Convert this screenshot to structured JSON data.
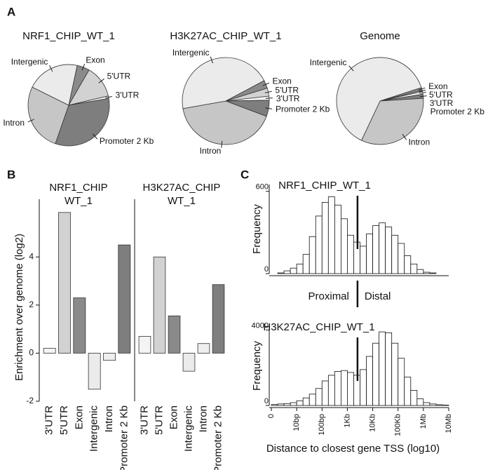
{
  "panel_labels": [
    "A",
    "B",
    "C"
  ],
  "chart_data": [
    {
      "type": "pie",
      "title": "NRF1_CHIP_WT_1",
      "categories": [
        "Exon",
        "5'UTR",
        "3'UTR",
        "Promoter 2 Kb",
        "Intron",
        "Intergenic"
      ],
      "values": [
        5,
        13,
        1,
        33,
        27,
        21
      ],
      "colors": [
        "#8a8a8a",
        "#d2d2d2",
        "#f4f4f4",
        "#7e7e7e",
        "#c6c6c6",
        "#ebebeb"
      ]
    },
    {
      "type": "pie",
      "title": "H3K27AC_CHIP_WT_1",
      "categories": [
        "Exon",
        "5'UTR",
        "3'UTR",
        "Promoter 2 Kb",
        "Intron",
        "Intergenic"
      ],
      "values": [
        3,
        3,
        1.5,
        6,
        41.5,
        45
      ],
      "colors": [
        "#8a8a8a",
        "#d2d2d2",
        "#f4f4f4",
        "#7e7e7e",
        "#c6c6c6",
        "#ebebeb"
      ]
    },
    {
      "type": "pie",
      "title": "Genome",
      "categories": [
        "Exon",
        "5'UTR",
        "3'UTR",
        "Promoter 2 Kb",
        "Intron",
        "Intergenic"
      ],
      "values": [
        1,
        0.5,
        1,
        1.5,
        33,
        63
      ],
      "colors": [
        "#8a8a8a",
        "#d2d2d2",
        "#f4f4f4",
        "#7e7e7e",
        "#c6c6c6",
        "#ebebeb"
      ]
    },
    {
      "type": "bar",
      "title": [
        "NRF1_CHIP",
        "WT_1"
      ],
      "ylabel": "Enrichment over genome (log2)",
      "categories": [
        "3'UTR",
        "5'UTR",
        "Exon",
        "Intergenic",
        "Intron",
        "Promoter 2 Kb"
      ],
      "values": [
        0.2,
        5.85,
        2.3,
        -1.5,
        -0.3,
        4.5
      ],
      "colors": [
        "#f4f4f4",
        "#d2d2d2",
        "#8a8a8a",
        "#ebebeb",
        "#eeeeee",
        "#7e7e7e"
      ],
      "ylim": [
        -2,
        6.4
      ],
      "yticks": [
        -2,
        0,
        2,
        4
      ]
    },
    {
      "type": "bar",
      "title": [
        "H3K27AC_CHIP",
        "WT_1"
      ],
      "categories": [
        "3'UTR",
        "5'UTR",
        "Exon",
        "Intergenic",
        "Intron",
        "Promoter 2 Kb"
      ],
      "values": [
        0.7,
        4.0,
        1.55,
        -0.75,
        0.4,
        2.85
      ],
      "colors": [
        "#f4f4f4",
        "#d2d2d2",
        "#8a8a8a",
        "#ebebeb",
        "#eeeeee",
        "#7e7e7e"
      ],
      "ylim": [
        -2,
        6.4
      ]
    },
    {
      "type": "histogram",
      "title": "NRF1_CHIP_WT_1",
      "ylabel": "Frequency",
      "bins": [
        0,
        0.25,
        0.5,
        0.75,
        1,
        1.25,
        1.5,
        1.75,
        2,
        2.25,
        2.5,
        2.75,
        3,
        3.25,
        3.5,
        3.75,
        4,
        4.25,
        4.5,
        4.75,
        5,
        5.25,
        5.5,
        5.75,
        6,
        6.25,
        6.5,
        6.75,
        7
      ],
      "values": [
        0,
        5,
        20,
        40,
        70,
        140,
        270,
        420,
        520,
        560,
        500,
        400,
        280,
        230,
        200,
        290,
        350,
        370,
        340,
        280,
        220,
        130,
        70,
        30,
        10,
        5,
        0,
        0
      ],
      "xlim": [
        0,
        7
      ],
      "ylim": [
        0,
        650
      ],
      "yticks": [
        0,
        600
      ],
      "divider": 3.4,
      "annotations": [
        "Proximal",
        "Distal"
      ]
    },
    {
      "type": "histogram",
      "title": "H3K27AC_CHIP_WT_1",
      "ylabel": "Frequency",
      "xlabel": "Distance to closest gene TSS (log10)",
      "bins": [
        0,
        0.25,
        0.5,
        0.75,
        1,
        1.25,
        1.5,
        1.75,
        2,
        2.25,
        2.5,
        2.75,
        3,
        3.25,
        3.5,
        3.75,
        4,
        4.25,
        4.5,
        4.75,
        5,
        5.25,
        5.5,
        5.75,
        6,
        6.25,
        6.5,
        6.75,
        7
      ],
      "values": [
        50,
        80,
        100,
        150,
        250,
        400,
        600,
        900,
        1300,
        1600,
        1800,
        1850,
        1750,
        1600,
        1900,
        2600,
        3300,
        3900,
        3850,
        3300,
        2500,
        1500,
        800,
        350,
        150,
        80,
        40,
        20
      ],
      "xlim": [
        0,
        7
      ],
      "ylim": [
        0,
        4200
      ],
      "yticks": [
        0,
        4000
      ],
      "xticks": [
        0,
        {
          "value": 1,
          "label": "10bp"
        },
        {
          "value": 2,
          "label": "100bp"
        },
        {
          "value": 3,
          "label": "1Kb"
        },
        {
          "value": 4,
          "label": "10Kb"
        },
        {
          "value": 5,
          "label": "100Kb"
        },
        {
          "value": 6,
          "label": "1Mb"
        },
        {
          "value": 7,
          "label": "10Mb"
        }
      ],
      "divider": 3.4
    }
  ]
}
